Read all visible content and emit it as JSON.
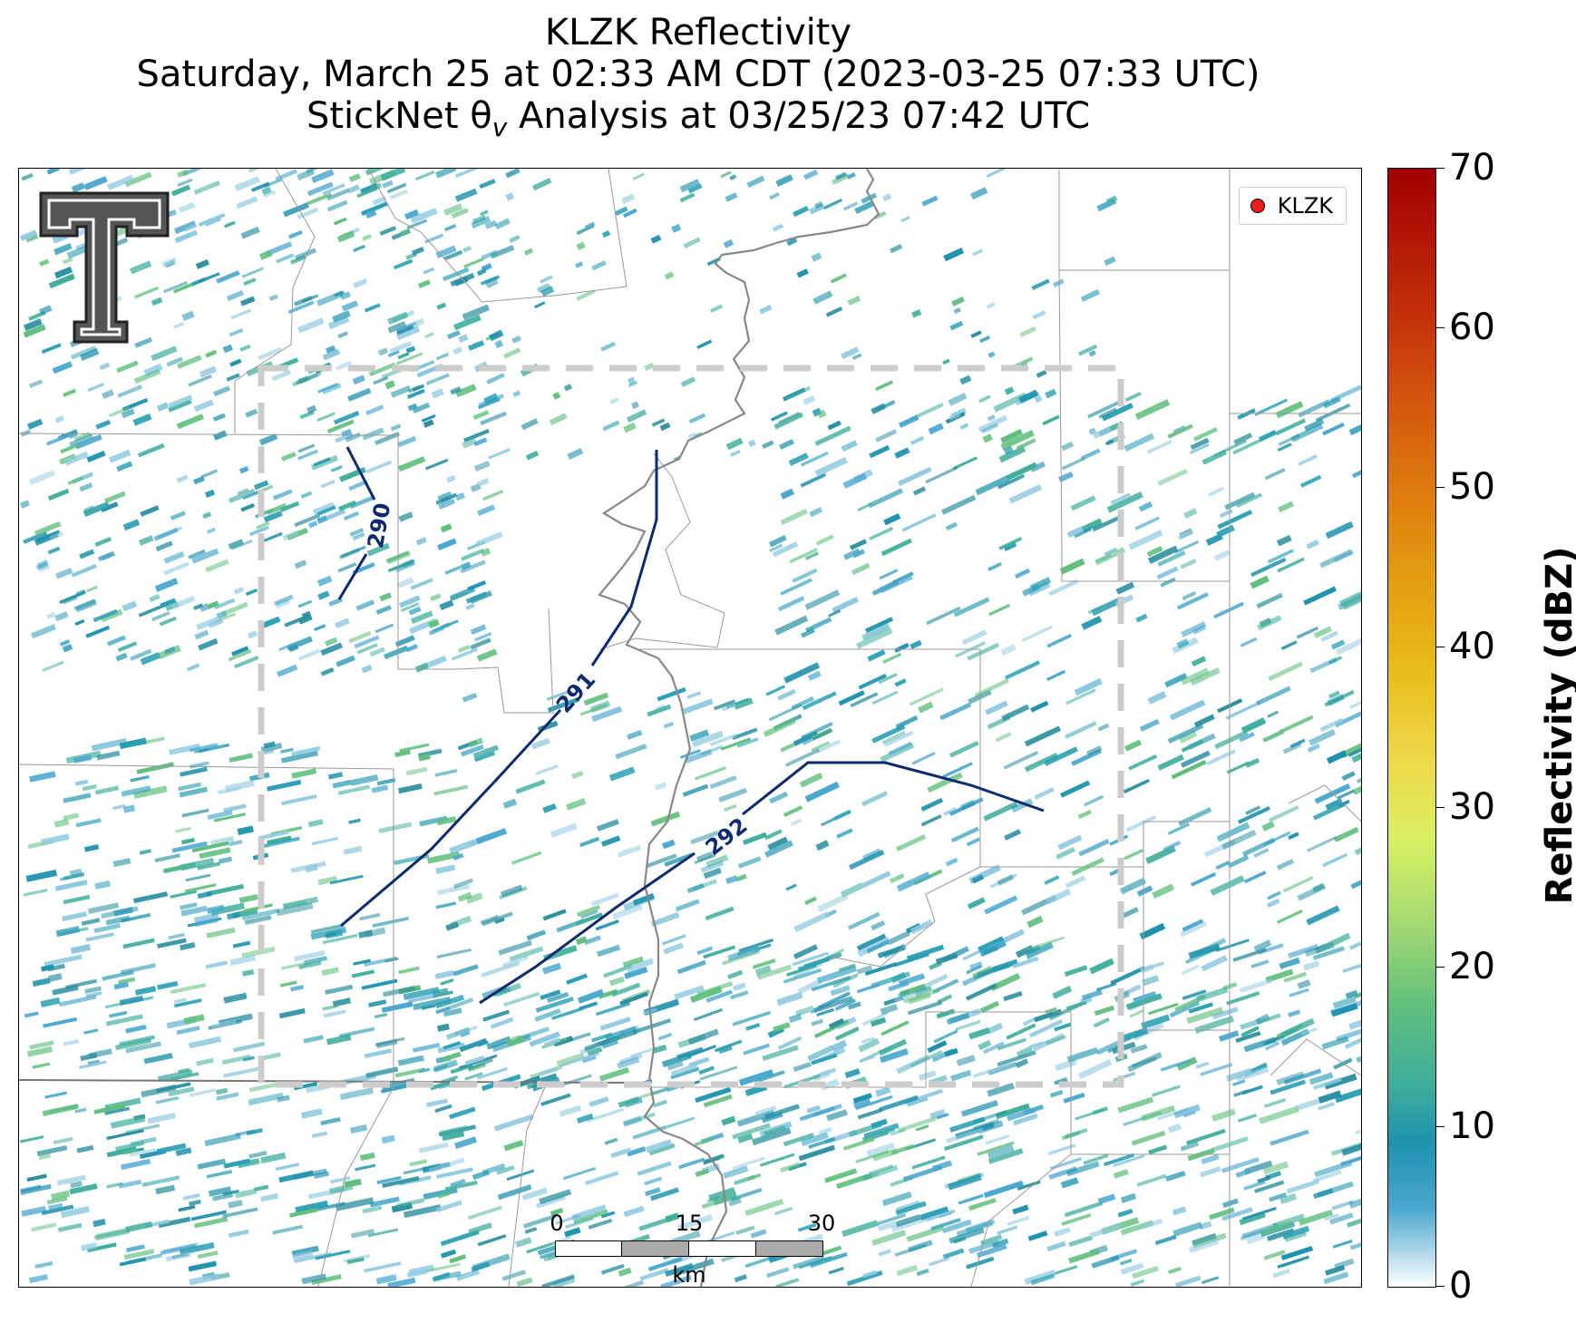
{
  "title": {
    "line1": "KLZK Reflectivity",
    "line2": "Saturday, March 25 at 02:33 AM CDT (2023-03-25 07:33 UTC)",
    "line3_prefix": "StickNet θ",
    "line3_sub": "v",
    "line3_suffix": " Analysis at 03/25/23 07:42 UTC"
  },
  "legend": {
    "label": "KLZK",
    "marker_color": "#ee1c1c"
  },
  "colorbar": {
    "label": "Reflectivity (dBZ)",
    "ticks": [
      "0",
      "10",
      "20",
      "30",
      "40",
      "50",
      "60",
      "70"
    ],
    "range": [
      0,
      70
    ],
    "colors": [
      "#ffffff",
      "#1e92ad",
      "#5fbf7c",
      "#d9f062",
      "#e8bd1a",
      "#da6a0d",
      "#c4300a",
      "#a10000"
    ]
  },
  "contours": {
    "color": "#0d2a6e",
    "labels": [
      "290",
      "291",
      "292"
    ]
  },
  "scalebar": {
    "ticks": [
      "0",
      "15",
      "30"
    ],
    "unit": "km"
  },
  "colors": {
    "analysis_box": "#cccccc",
    "river": "#888888",
    "county_lines": "#999999"
  }
}
